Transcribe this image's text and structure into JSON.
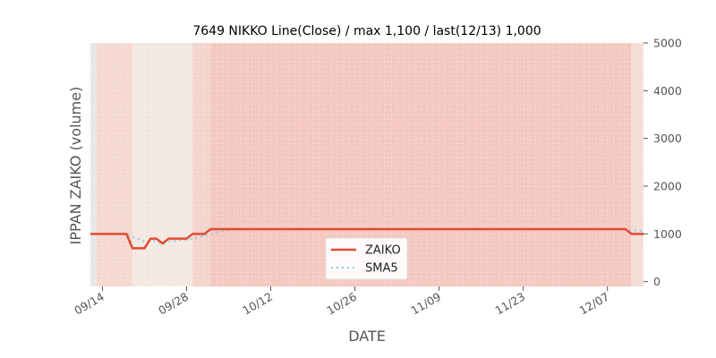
{
  "chart_data": {
    "type": "line",
    "title": "7649 NIKKO Line(Close) / max 1,100 / last(12/13) 1,000",
    "xlabel": "DATE",
    "ylabel": "IPPAN ZAIKO (volume)",
    "ylim": [
      -100,
      5000
    ],
    "yticks": [
      0,
      1000,
      2000,
      3000,
      4000,
      5000
    ],
    "ytick_labels": [
      "0",
      "1000",
      "2000",
      "3000",
      "4000",
      "5000"
    ],
    "x_start": "2019-09-12",
    "x_end": "2019-12-13",
    "xticks": [
      {
        "date": "2019-09-14",
        "label": "09/14"
      },
      {
        "date": "2019-09-28",
        "label": "09/28"
      },
      {
        "date": "2019-10-12",
        "label": "10/12"
      },
      {
        "date": "2019-10-26",
        "label": "10/26"
      },
      {
        "date": "2019-11-09",
        "label": "11/09"
      },
      {
        "date": "2019-11-23",
        "label": "11/23"
      },
      {
        "date": "2019-12-07",
        "label": "12/07"
      }
    ],
    "grid": true,
    "legend_position": "lower-center",
    "background_bands": [
      {
        "from": "2019-09-12",
        "to": "2019-09-13",
        "color": "#e6e6e6"
      },
      {
        "from": "2019-09-13",
        "to": "2019-09-19",
        "color": "#f5d8cf"
      },
      {
        "from": "2019-09-19",
        "to": "2019-09-29",
        "color": "#f3e8e1"
      },
      {
        "from": "2019-09-29",
        "to": "2019-10-02",
        "color": "#f3d4cb"
      },
      {
        "from": "2019-10-02",
        "to": "2019-12-11",
        "color": "#f4c8bf"
      },
      {
        "from": "2019-12-11",
        "to": "2019-12-13",
        "color": "#f3ddd6"
      },
      {
        "from": "2019-12-13",
        "to": "2019-12-14",
        "color": "#e6e6e6"
      }
    ],
    "series": [
      {
        "name": "ZAIKO",
        "color": "#e24a33",
        "style": "solid",
        "points": [
          [
            "2019-09-12",
            1000
          ],
          [
            "2019-09-18",
            1000
          ],
          [
            "2019-09-19",
            700
          ],
          [
            "2019-09-21",
            700
          ],
          [
            "2019-09-22",
            900
          ],
          [
            "2019-09-23",
            900
          ],
          [
            "2019-09-24",
            800
          ],
          [
            "2019-09-25",
            900
          ],
          [
            "2019-09-28",
            900
          ],
          [
            "2019-09-29",
            1000
          ],
          [
            "2019-10-01",
            1000
          ],
          [
            "2019-10-02",
            1100
          ],
          [
            "2019-12-10",
            1100
          ],
          [
            "2019-12-11",
            1000
          ],
          [
            "2019-12-13",
            1000
          ]
        ]
      },
      {
        "name": "SMA5",
        "color": "#92c6de",
        "style": "dotted",
        "points": [
          [
            "2019-09-12",
            1000
          ],
          [
            "2019-09-18",
            1000
          ],
          [
            "2019-09-19",
            940
          ],
          [
            "2019-09-21",
            840
          ],
          [
            "2019-09-22",
            860
          ],
          [
            "2019-09-23",
            840
          ],
          [
            "2019-09-24",
            800
          ],
          [
            "2019-09-25",
            840
          ],
          [
            "2019-09-28",
            880
          ],
          [
            "2019-09-29",
            900
          ],
          [
            "2019-10-01",
            960
          ],
          [
            "2019-10-02",
            1000
          ],
          [
            "2019-10-04",
            1060
          ],
          [
            "2019-10-06",
            1100
          ],
          [
            "2019-12-10",
            1100
          ],
          [
            "2019-12-11",
            1080
          ],
          [
            "2019-12-13",
            1060
          ]
        ]
      }
    ]
  }
}
